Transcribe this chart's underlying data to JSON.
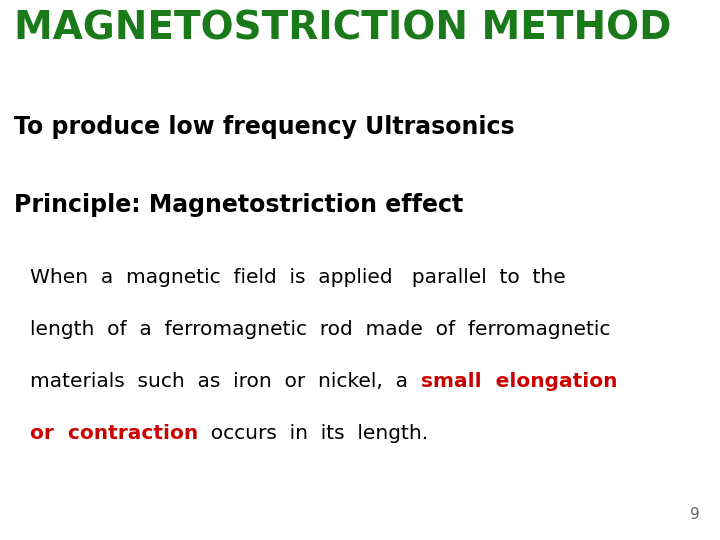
{
  "title": "MAGNETOSTRICTION METHOD",
  "title_color": "#1a7a1a",
  "title_fontsize": 28,
  "line1": "To produce low frequency Ultrasonics",
  "line1_fontsize": 17,
  "line1_color": "#000000",
  "line2": "Principle: Magnetostriction effect",
  "line2_fontsize": 17,
  "line2_color": "#000000",
  "body_line1": "When  a  magnetic  field  is  applied   parallel  to  the",
  "body_line2": "length  of  a  ferromagnetic  rod  made  of  ferromagnetic",
  "body_line3_black": "materials  such  as  iron  or  nickel,  a  ",
  "body_line3_red": "small  elongation",
  "body_line4_red": "or  contraction",
  "body_line4_black": "  occurs  in  its  length.",
  "body_fontsize": 14.5,
  "red_color": "#cc0000",
  "black_color": "#000000",
  "page_number": "9",
  "page_number_color": "#666666",
  "background_color": "#ffffff"
}
